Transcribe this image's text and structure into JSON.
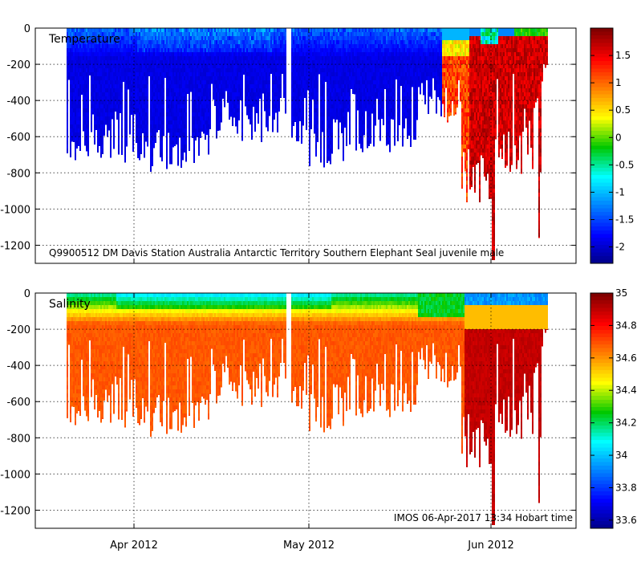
{
  "chart_data": [
    {
      "type": "heatmap",
      "title": "Temperature",
      "variable": "Temperature",
      "annotation": "Q9900512 DM Davis Station Australia Antarctic Territory Southern Elephant Seal juvenile male",
      "xaxis": {
        "ticks": [
          {
            "label": "Apr 2012",
            "date": "2012-04-01"
          },
          {
            "label": "May 2012",
            "date": "2012-05-01"
          },
          {
            "label": "Jun 2012",
            "date": "2012-06-01"
          }
        ],
        "range": [
          "2012-03-13",
          "2012-06-15"
        ]
      },
      "yaxis": {
        "ticks": [
          0,
          -200,
          -400,
          -600,
          -800,
          -1000,
          -1200
        ],
        "range": [
          -1300,
          0
        ]
      },
      "colorbar": {
        "range": [
          -2.3,
          2.0
        ],
        "ticks": [
          "1.5",
          "1",
          "0.5",
          "0",
          "-0.5",
          "-1",
          "-1.5",
          "-2"
        ],
        "tick_values": [
          1.5,
          1,
          0.5,
          0,
          -0.5,
          -1,
          -1.5,
          -2
        ]
      },
      "depth_profile": [
        {
          "day": 0,
          "max_depth": -700
        },
        {
          "day": 5,
          "max_depth": -780
        },
        {
          "day": 12,
          "max_depth": -760
        },
        {
          "day": 18,
          "max_depth": -740
        },
        {
          "day": 25,
          "max_depth": -760
        },
        {
          "day": 32,
          "max_depth": -680
        },
        {
          "day": 38,
          "max_depth": -580
        },
        {
          "day": 46,
          "max_depth": -780
        },
        {
          "day": 52,
          "max_depth": -680
        },
        {
          "day": 58,
          "max_depth": -700
        },
        {
          "day": 63,
          "max_depth": -520
        },
        {
          "day": 68,
          "max_depth": -600
        },
        {
          "day": 74,
          "max_depth": -900
        },
        {
          "day": 78,
          "max_depth": -1000
        },
        {
          "day": 80,
          "max_depth": -1280
        },
        {
          "day": 84,
          "max_depth": -900
        },
        {
          "day": 88,
          "max_depth": -1100
        },
        {
          "day": 90,
          "max_depth": -1180
        }
      ],
      "values_range": {
        "water_mass_before_late_may": [
          -2.0,
          -1.5
        ],
        "water_mass_june": [
          1.2,
          1.9
        ]
      }
    },
    {
      "type": "heatmap",
      "title": "Salinity",
      "variable": "Salinity",
      "annotation": "IMOS 06-Apr-2017 13:34 Hobart time",
      "xaxis": {
        "ticks": [
          {
            "label": "Apr 2012",
            "date": "2012-04-01"
          },
          {
            "label": "May 2012",
            "date": "2012-05-01"
          },
          {
            "label": "Jun 2012",
            "date": "2012-06-01"
          }
        ],
        "range": [
          "2012-03-13",
          "2012-06-15"
        ]
      },
      "yaxis": {
        "ticks": [
          0,
          -200,
          -400,
          -600,
          -800,
          -1000,
          -1200
        ],
        "range": [
          -1300,
          0
        ]
      },
      "colorbar": {
        "range": [
          33.55,
          35.0
        ],
        "ticks": [
          "35",
          "34.8",
          "34.6",
          "34.4",
          "34.2",
          "34",
          "33.8",
          "33.6"
        ],
        "tick_values": [
          35,
          34.8,
          34.6,
          34.4,
          34.2,
          34,
          33.8,
          33.6
        ]
      },
      "values_range": {
        "surface": [
          34.0,
          34.3
        ],
        "deep": [
          34.65,
          34.75
        ],
        "june_deep": [
          34.85,
          34.95
        ]
      }
    }
  ]
}
